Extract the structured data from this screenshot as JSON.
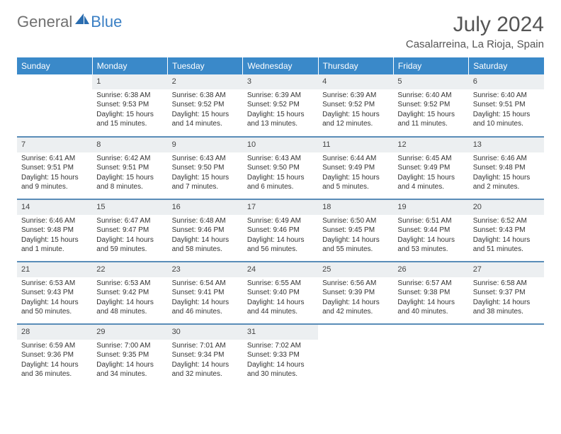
{
  "logo": {
    "text1": "General",
    "text2": "Blue"
  },
  "title": "July 2024",
  "location": "Casalarreina, La Rioja, Spain",
  "colors": {
    "header_bg": "#3a89c9",
    "header_text": "#ffffff",
    "daynum_bg": "#eceff1",
    "row_divider": "#5a8db8",
    "text": "#333333",
    "title_text": "#555555",
    "logo_gray": "#707070",
    "logo_blue": "#3a7fc4"
  },
  "weekdays": [
    "Sunday",
    "Monday",
    "Tuesday",
    "Wednesday",
    "Thursday",
    "Friday",
    "Saturday"
  ],
  "weeks": [
    [
      {
        "day": "",
        "sunrise": "",
        "sunset": "",
        "daylight": "",
        "empty": true
      },
      {
        "day": "1",
        "sunrise": "Sunrise: 6:38 AM",
        "sunset": "Sunset: 9:53 PM",
        "daylight": "Daylight: 15 hours and 15 minutes."
      },
      {
        "day": "2",
        "sunrise": "Sunrise: 6:38 AM",
        "sunset": "Sunset: 9:52 PM",
        "daylight": "Daylight: 15 hours and 14 minutes."
      },
      {
        "day": "3",
        "sunrise": "Sunrise: 6:39 AM",
        "sunset": "Sunset: 9:52 PM",
        "daylight": "Daylight: 15 hours and 13 minutes."
      },
      {
        "day": "4",
        "sunrise": "Sunrise: 6:39 AM",
        "sunset": "Sunset: 9:52 PM",
        "daylight": "Daylight: 15 hours and 12 minutes."
      },
      {
        "day": "5",
        "sunrise": "Sunrise: 6:40 AM",
        "sunset": "Sunset: 9:52 PM",
        "daylight": "Daylight: 15 hours and 11 minutes."
      },
      {
        "day": "6",
        "sunrise": "Sunrise: 6:40 AM",
        "sunset": "Sunset: 9:51 PM",
        "daylight": "Daylight: 15 hours and 10 minutes."
      }
    ],
    [
      {
        "day": "7",
        "sunrise": "Sunrise: 6:41 AM",
        "sunset": "Sunset: 9:51 PM",
        "daylight": "Daylight: 15 hours and 9 minutes."
      },
      {
        "day": "8",
        "sunrise": "Sunrise: 6:42 AM",
        "sunset": "Sunset: 9:51 PM",
        "daylight": "Daylight: 15 hours and 8 minutes."
      },
      {
        "day": "9",
        "sunrise": "Sunrise: 6:43 AM",
        "sunset": "Sunset: 9:50 PM",
        "daylight": "Daylight: 15 hours and 7 minutes."
      },
      {
        "day": "10",
        "sunrise": "Sunrise: 6:43 AM",
        "sunset": "Sunset: 9:50 PM",
        "daylight": "Daylight: 15 hours and 6 minutes."
      },
      {
        "day": "11",
        "sunrise": "Sunrise: 6:44 AM",
        "sunset": "Sunset: 9:49 PM",
        "daylight": "Daylight: 15 hours and 5 minutes."
      },
      {
        "day": "12",
        "sunrise": "Sunrise: 6:45 AM",
        "sunset": "Sunset: 9:49 PM",
        "daylight": "Daylight: 15 hours and 4 minutes."
      },
      {
        "day": "13",
        "sunrise": "Sunrise: 6:46 AM",
        "sunset": "Sunset: 9:48 PM",
        "daylight": "Daylight: 15 hours and 2 minutes."
      }
    ],
    [
      {
        "day": "14",
        "sunrise": "Sunrise: 6:46 AM",
        "sunset": "Sunset: 9:48 PM",
        "daylight": "Daylight: 15 hours and 1 minute."
      },
      {
        "day": "15",
        "sunrise": "Sunrise: 6:47 AM",
        "sunset": "Sunset: 9:47 PM",
        "daylight": "Daylight: 14 hours and 59 minutes."
      },
      {
        "day": "16",
        "sunrise": "Sunrise: 6:48 AM",
        "sunset": "Sunset: 9:46 PM",
        "daylight": "Daylight: 14 hours and 58 minutes."
      },
      {
        "day": "17",
        "sunrise": "Sunrise: 6:49 AM",
        "sunset": "Sunset: 9:46 PM",
        "daylight": "Daylight: 14 hours and 56 minutes."
      },
      {
        "day": "18",
        "sunrise": "Sunrise: 6:50 AM",
        "sunset": "Sunset: 9:45 PM",
        "daylight": "Daylight: 14 hours and 55 minutes."
      },
      {
        "day": "19",
        "sunrise": "Sunrise: 6:51 AM",
        "sunset": "Sunset: 9:44 PM",
        "daylight": "Daylight: 14 hours and 53 minutes."
      },
      {
        "day": "20",
        "sunrise": "Sunrise: 6:52 AM",
        "sunset": "Sunset: 9:43 PM",
        "daylight": "Daylight: 14 hours and 51 minutes."
      }
    ],
    [
      {
        "day": "21",
        "sunrise": "Sunrise: 6:53 AM",
        "sunset": "Sunset: 9:43 PM",
        "daylight": "Daylight: 14 hours and 50 minutes."
      },
      {
        "day": "22",
        "sunrise": "Sunrise: 6:53 AM",
        "sunset": "Sunset: 9:42 PM",
        "daylight": "Daylight: 14 hours and 48 minutes."
      },
      {
        "day": "23",
        "sunrise": "Sunrise: 6:54 AM",
        "sunset": "Sunset: 9:41 PM",
        "daylight": "Daylight: 14 hours and 46 minutes."
      },
      {
        "day": "24",
        "sunrise": "Sunrise: 6:55 AM",
        "sunset": "Sunset: 9:40 PM",
        "daylight": "Daylight: 14 hours and 44 minutes."
      },
      {
        "day": "25",
        "sunrise": "Sunrise: 6:56 AM",
        "sunset": "Sunset: 9:39 PM",
        "daylight": "Daylight: 14 hours and 42 minutes."
      },
      {
        "day": "26",
        "sunrise": "Sunrise: 6:57 AM",
        "sunset": "Sunset: 9:38 PM",
        "daylight": "Daylight: 14 hours and 40 minutes."
      },
      {
        "day": "27",
        "sunrise": "Sunrise: 6:58 AM",
        "sunset": "Sunset: 9:37 PM",
        "daylight": "Daylight: 14 hours and 38 minutes."
      }
    ],
    [
      {
        "day": "28",
        "sunrise": "Sunrise: 6:59 AM",
        "sunset": "Sunset: 9:36 PM",
        "daylight": "Daylight: 14 hours and 36 minutes."
      },
      {
        "day": "29",
        "sunrise": "Sunrise: 7:00 AM",
        "sunset": "Sunset: 9:35 PM",
        "daylight": "Daylight: 14 hours and 34 minutes."
      },
      {
        "day": "30",
        "sunrise": "Sunrise: 7:01 AM",
        "sunset": "Sunset: 9:34 PM",
        "daylight": "Daylight: 14 hours and 32 minutes."
      },
      {
        "day": "31",
        "sunrise": "Sunrise: 7:02 AM",
        "sunset": "Sunset: 9:33 PM",
        "daylight": "Daylight: 14 hours and 30 minutes."
      },
      {
        "day": "",
        "sunrise": "",
        "sunset": "",
        "daylight": "",
        "empty": true
      },
      {
        "day": "",
        "sunrise": "",
        "sunset": "",
        "daylight": "",
        "empty": true
      },
      {
        "day": "",
        "sunrise": "",
        "sunset": "",
        "daylight": "",
        "empty": true
      }
    ]
  ]
}
